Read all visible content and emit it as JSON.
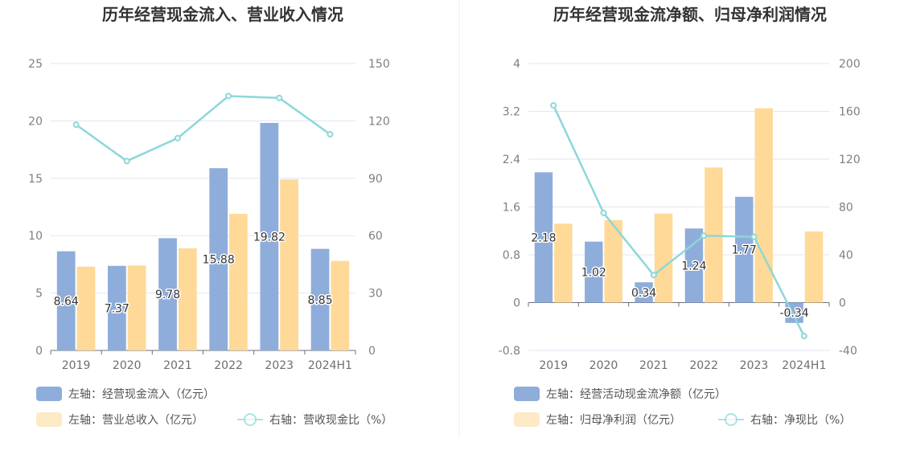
{
  "chart_data": [
    {
      "type": "bar",
      "title": "历年经营现金流入、营业收入情况",
      "categories": [
        "2019",
        "2020",
        "2021",
        "2022",
        "2023",
        "2024H1"
      ],
      "y_left": {
        "ylim": [
          0,
          25
        ],
        "ticks": [
          "0",
          "5",
          "10",
          "15",
          "20",
          "25"
        ]
      },
      "y_right": {
        "ylim": [
          0,
          150
        ],
        "ticks": [
          "0",
          "30",
          "60",
          "90",
          "120",
          "150"
        ]
      },
      "series": [
        {
          "name": "左轴：经营现金流入（亿元）",
          "type": "bar",
          "axis": "left",
          "color": "#8eaddb",
          "values": [
            8.64,
            7.37,
            9.78,
            15.88,
            19.82,
            8.85
          ],
          "labels": [
            "8.64",
            "7.37",
            "9.78",
            "15.88",
            "19.82",
            "8.85"
          ]
        },
        {
          "name": "左轴：营业总收入（亿元）",
          "type": "bar",
          "axis": "left",
          "color": "#fed998",
          "values": [
            7.3,
            7.4,
            8.9,
            11.9,
            14.9,
            7.8
          ]
        },
        {
          "name": "右轴：营收现金比（%）",
          "type": "line",
          "axis": "right",
          "color": "#8dd7d9",
          "values": [
            118,
            99,
            111,
            133,
            132,
            113
          ]
        }
      ],
      "legend": "bottom"
    },
    {
      "type": "bar",
      "title": "历年经营现金流净额、归母净利润情况",
      "categories": [
        "2019",
        "2020",
        "2021",
        "2022",
        "2023",
        "2024H1"
      ],
      "y_left": {
        "ylim": [
          -0.8,
          4
        ],
        "ticks": [
          "-0.8",
          "0",
          "0.8",
          "1.6",
          "2.4",
          "3.2",
          "4"
        ]
      },
      "y_right": {
        "ylim": [
          -40,
          200
        ],
        "ticks": [
          "-40",
          "0",
          "40",
          "80",
          "120",
          "160",
          "200"
        ]
      },
      "series": [
        {
          "name": "左轴：经营活动现金流净额（亿元）",
          "type": "bar",
          "axis": "left",
          "color": "#8eaddb",
          "values": [
            2.18,
            1.02,
            0.34,
            1.24,
            1.77,
            -0.34
          ],
          "labels": [
            "2.18",
            "1.02",
            "0.34",
            "1.24",
            "1.77",
            "-0.34"
          ]
        },
        {
          "name": "左轴：归母净利润（亿元）",
          "type": "bar",
          "axis": "left",
          "color": "#fed998",
          "values": [
            1.32,
            1.38,
            1.49,
            2.26,
            3.25,
            1.19
          ]
        },
        {
          "name": "右轴：净现比（%）",
          "type": "line",
          "axis": "right",
          "color": "#8dd7d9",
          "values": [
            165,
            75,
            23,
            56,
            55,
            -28
          ]
        }
      ],
      "legend": "bottom"
    }
  ]
}
